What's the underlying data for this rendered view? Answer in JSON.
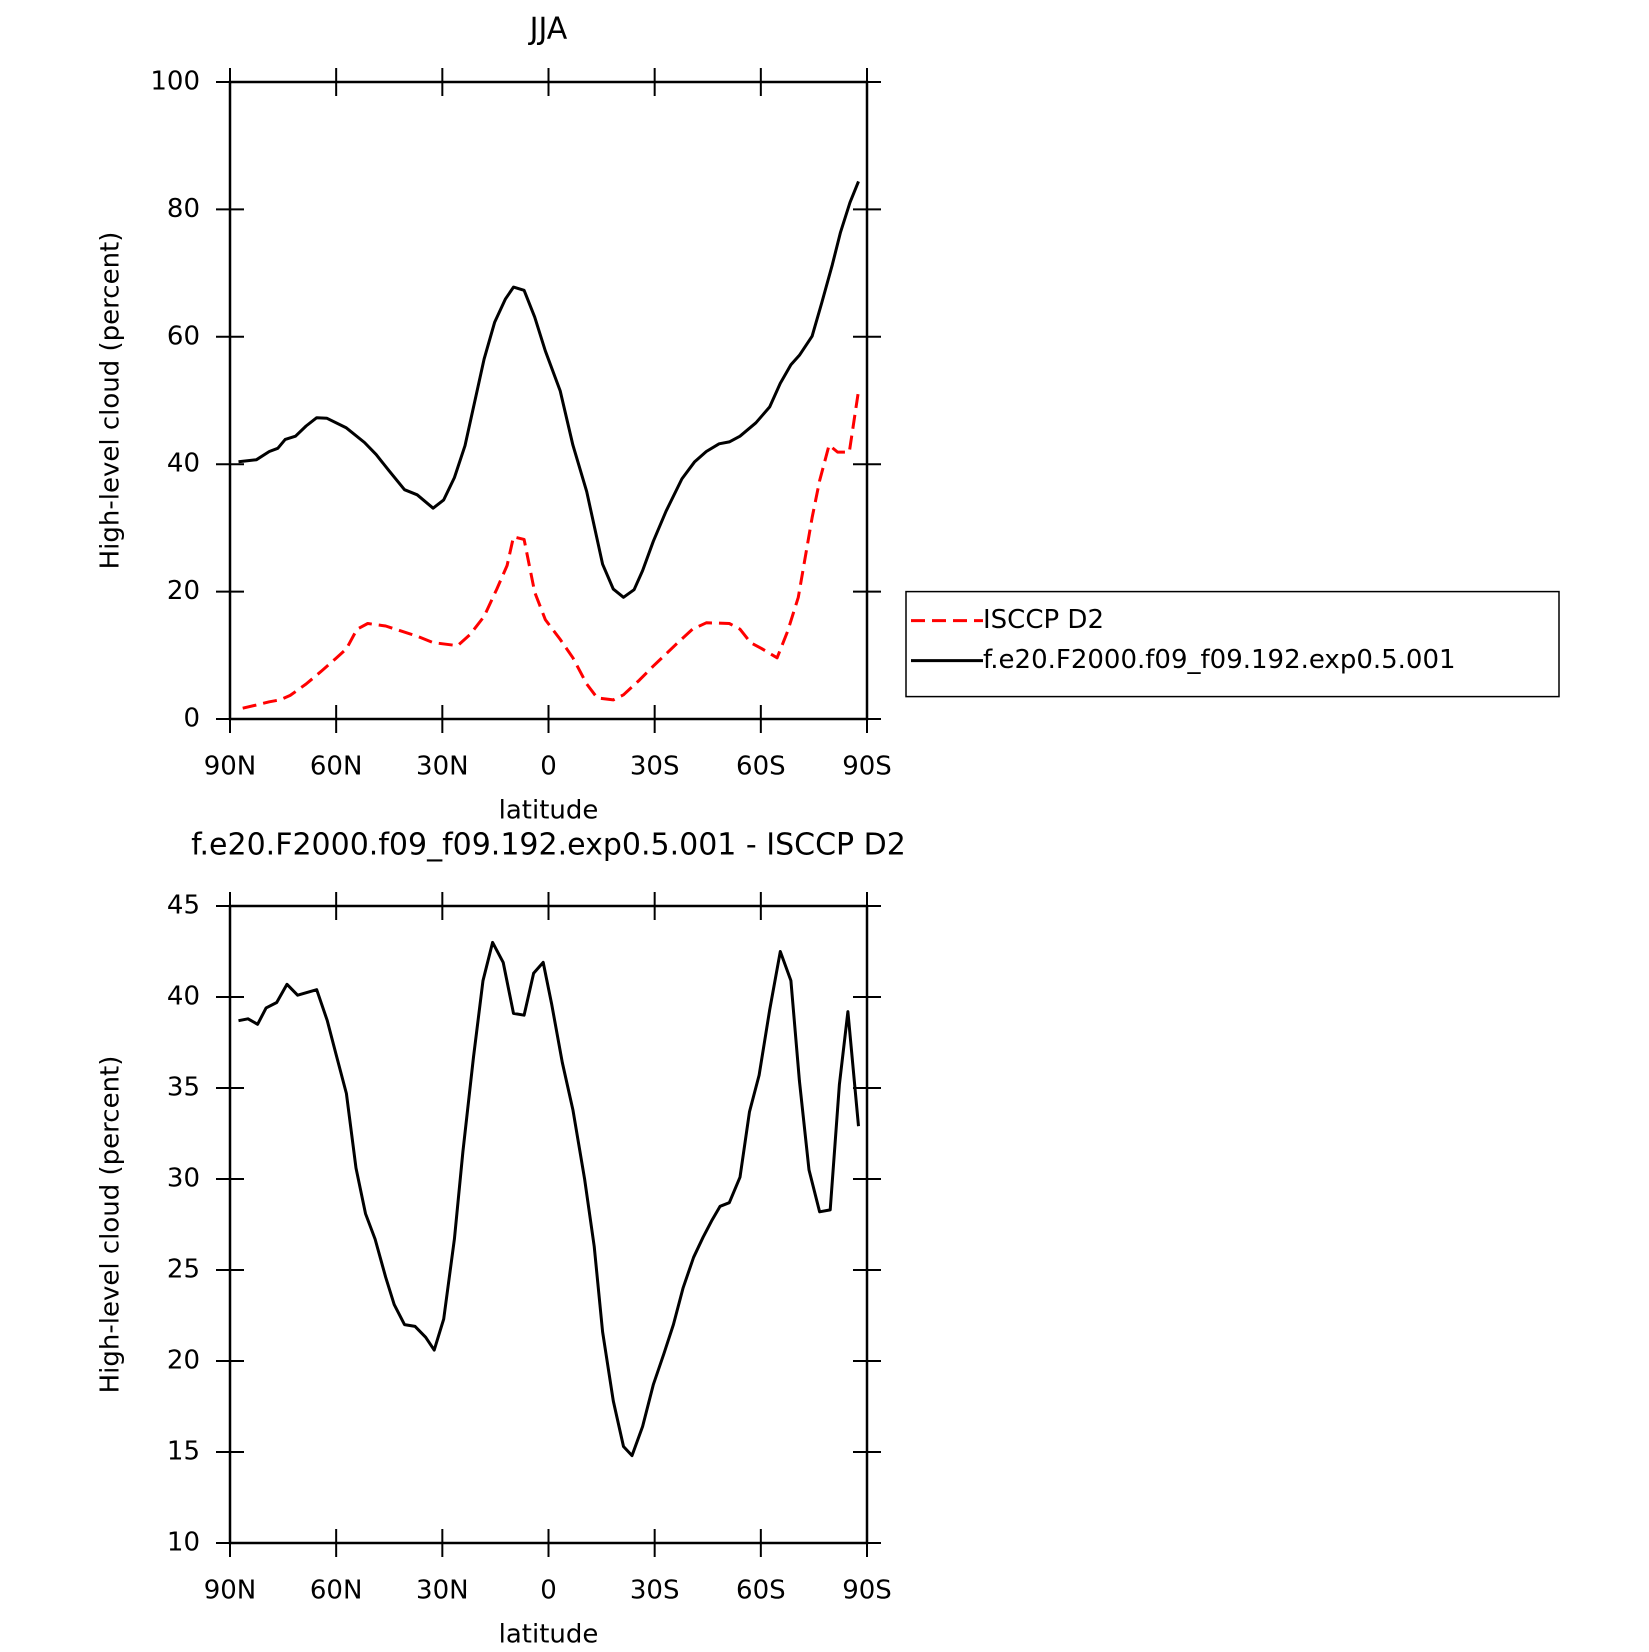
{
  "chart_data": [
    {
      "type": "line",
      "title": "JJA",
      "xlabel": "latitude",
      "ylabel": "High-level cloud (percent)",
      "xlim": [
        90,
        -90
      ],
      "xticks": [
        {
          "value": 90,
          "label": "90N"
        },
        {
          "value": 60,
          "label": "60N"
        },
        {
          "value": 30,
          "label": "30N"
        },
        0,
        {
          "value": -30,
          "label": "30S"
        },
        {
          "value": -60,
          "label": "60S"
        },
        {
          "value": -90,
          "label": "90S"
        }
      ],
      "ylim": [
        0,
        100
      ],
      "yticks": [
        0,
        20,
        40,
        60,
        80,
        100
      ],
      "legend": "right",
      "series": [
        {
          "name": "ISCCP D2",
          "color": "#ff0000",
          "line_style": "dashed",
          "x": [
            86.4,
            82.5,
            78.9,
            75.9,
            73.0,
            68.5,
            64.0,
            60.1,
            57.1,
            54.1,
            51.1,
            46.0,
            41.6,
            37.1,
            32.6,
            25.7,
            22.1,
            18.2,
            14.6,
            11.7,
            9.9,
            6.9,
            3.9,
            0.9,
            -3.3,
            -6.9,
            -10.8,
            -13.8,
            -18.3,
            -21.2,
            -25.7,
            -29.6,
            -36.2,
            -40.7,
            -44.6,
            -51.1,
            -54.1,
            -57.1,
            -60.1,
            -64.6,
            -67.6,
            -70.6,
            -74.5,
            -76.6,
            -79.3,
            -81.7,
            -85.0,
            -87.6
          ],
          "values": [
            1.7,
            2.2,
            2.7,
            3.0,
            3.7,
            5.5,
            7.6,
            9.5,
            11.0,
            14.1,
            15.0,
            14.6,
            13.8,
            13.0,
            12.0,
            11.5,
            13.3,
            16.1,
            20.4,
            24.1,
            28.6,
            28.2,
            19.9,
            15.6,
            12.5,
            9.6,
            5.5,
            3.3,
            3.0,
            3.8,
            6.1,
            8.3,
            11.8,
            14.1,
            15.1,
            15.0,
            14.1,
            12.0,
            11.1,
            9.6,
            13.8,
            19.1,
            31.6,
            37.4,
            43.0,
            41.9,
            41.9,
            51.5
          ]
        },
        {
          "name": "f.e20.F2000.f09_f09.192.exp0.5.001",
          "color": "#000000",
          "line_style": "solid",
          "x": [
            87.6,
            82.5,
            78.9,
            76.5,
            74.4,
            71.5,
            68.5,
            65.5,
            62.6,
            57.1,
            52.0,
            48.7,
            45.1,
            40.7,
            37.1,
            32.6,
            29.6,
            26.6,
            23.6,
            18.2,
            15.2,
            12.2,
            9.9,
            6.9,
            3.9,
            0.9,
            -3.3,
            -6.9,
            -10.8,
            -15.3,
            -18.3,
            -21.2,
            -24.2,
            -26.6,
            -29.6,
            -33.2,
            -37.7,
            -41.3,
            -44.6,
            -48.2,
            -51.1,
            -54.1,
            -58.6,
            -62.5,
            -65.5,
            -68.5,
            -70.9,
            -74.5,
            -77.2,
            -80.2,
            -82.5,
            -85.2,
            -87.6
          ],
          "values": [
            40.4,
            40.7,
            42.0,
            42.5,
            43.9,
            44.4,
            46.0,
            47.3,
            47.2,
            45.7,
            43.4,
            41.5,
            39.0,
            36.0,
            35.2,
            33.1,
            34.4,
            37.9,
            42.9,
            56.5,
            62.3,
            65.9,
            67.8,
            67.3,
            63.1,
            57.8,
            51.5,
            43.0,
            35.7,
            24.3,
            20.4,
            19.1,
            20.3,
            23.3,
            27.9,
            32.6,
            37.7,
            40.4,
            42.0,
            43.2,
            43.5,
            44.4,
            46.5,
            49.0,
            52.7,
            55.6,
            57.1,
            60.1,
            65.3,
            71.3,
            76.4,
            81.1,
            84.4
          ]
        }
      ]
    },
    {
      "type": "line",
      "title": "f.e20.F2000.f09_f09.192.exp0.5.001 - ISCCP D2",
      "xlabel": "latitude",
      "ylabel": "High-level cloud (percent)",
      "xlim": [
        90,
        -90
      ],
      "xticks": [
        {
          "value": 90,
          "label": "90N"
        },
        {
          "value": 60,
          "label": "60N"
        },
        {
          "value": 30,
          "label": "30N"
        },
        0,
        {
          "value": -30,
          "label": "30S"
        },
        {
          "value": -60,
          "label": "60S"
        },
        {
          "value": -90,
          "label": "90S"
        }
      ],
      "ylim": [
        10,
        45
      ],
      "yticks": [
        10,
        15,
        20,
        25,
        30,
        35,
        40,
        45
      ],
      "color": "#000000",
      "x": [
        87.6,
        84.9,
        82.2,
        79.8,
        76.8,
        73.9,
        70.9,
        65.5,
        62.5,
        60.1,
        57.1,
        54.4,
        51.7,
        49.0,
        46.0,
        43.6,
        40.7,
        37.7,
        34.7,
        32.3,
        29.6,
        26.6,
        24.2,
        21.2,
        18.5,
        15.8,
        12.8,
        9.9,
        6.9,
        4.2,
        1.5,
        -0.9,
        -3.9,
        -6.9,
        -10.2,
        -12.9,
        -15.3,
        -18.3,
        -21.2,
        -23.6,
        -26.6,
        -29.6,
        -32.6,
        -35.3,
        -38.0,
        -41.0,
        -43.7,
        -46.1,
        -48.5,
        -51.1,
        -54.1,
        -56.8,
        -59.5,
        -62.5,
        -65.5,
        -68.5,
        -70.9,
        -73.6,
        -76.6,
        -79.6,
        -82.2,
        -84.6,
        -87.6
      ],
      "values": [
        38.7,
        38.8,
        38.5,
        39.4,
        39.7,
        40.7,
        40.1,
        40.4,
        38.7,
        36.9,
        34.7,
        30.6,
        28.1,
        26.7,
        24.6,
        23.1,
        22.0,
        21.9,
        21.3,
        20.6,
        22.3,
        26.7,
        31.5,
        36.7,
        40.9,
        43.0,
        41.9,
        39.1,
        39.0,
        41.3,
        41.9,
        39.6,
        36.4,
        33.8,
        30.0,
        26.3,
        21.6,
        17.8,
        15.3,
        14.8,
        16.4,
        18.7,
        20.4,
        22.0,
        24.0,
        25.7,
        26.8,
        27.7,
        28.5,
        28.7,
        30.1,
        33.7,
        35.7,
        39.3,
        42.5,
        40.9,
        35.4,
        30.5,
        28.2,
        28.3,
        35.2,
        39.2,
        32.9
      ]
    }
  ]
}
